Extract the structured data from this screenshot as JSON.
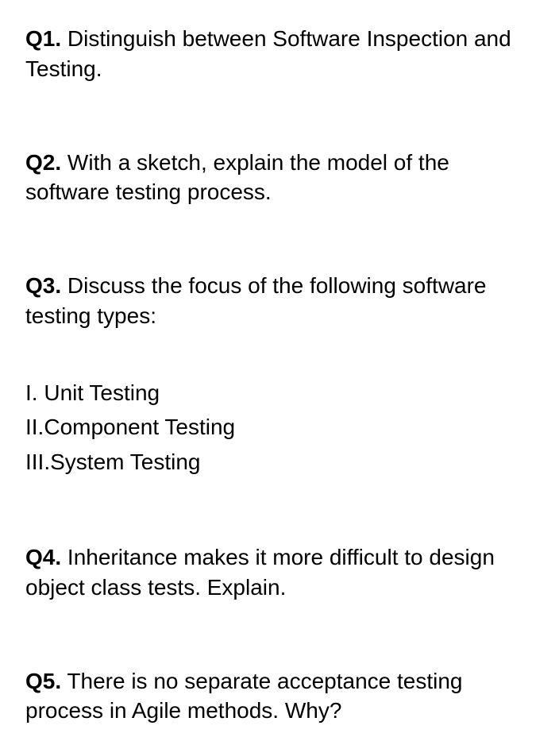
{
  "questions": {
    "q1": {
      "label": "Q1.",
      "text": " Distinguish between Software Inspection and Testing."
    },
    "q2": {
      "label": "Q2.",
      "text": " With a sketch, explain the model of the software testing process."
    },
    "q3": {
      "label": "Q3.",
      "text": " Discuss the focus of the following software testing types:",
      "items": {
        "i": {
          "num": "I.",
          "text": " Unit Testing"
        },
        "ii": {
          "num": "II.",
          "text": "Component Testing"
        },
        "iii": {
          "num": "III.",
          "text": "System Testing"
        }
      }
    },
    "q4": {
      "label": "Q4.",
      "text": " Inheritance makes it more difficult to design object class tests. Explain."
    },
    "q5": {
      "label": "Q5.",
      "text": " There is no separate acceptance testing process in Agile methods. Why?"
    }
  },
  "colors": {
    "background": "#ffffff",
    "text": "#000000"
  },
  "typography": {
    "font_family": "Arial, Helvetica, sans-serif",
    "question_fontsize": 28,
    "label_weight": 700,
    "text_weight": 400,
    "line_height": 1.35
  }
}
